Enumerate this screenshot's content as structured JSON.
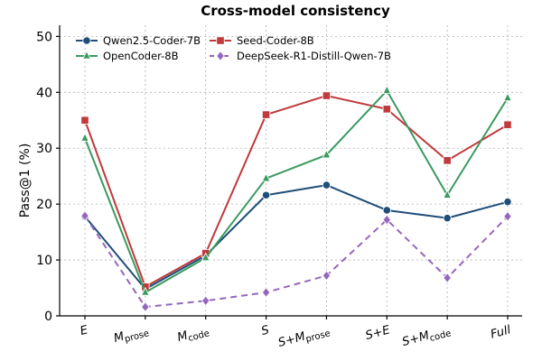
{
  "chart_data": {
    "type": "line",
    "title": "Cross-model consistency",
    "ylabel": "Pass@1 (%)",
    "xlabel": "",
    "ylim": [
      0,
      52
    ],
    "yticks": [
      0,
      10,
      20,
      30,
      40,
      50
    ],
    "grid": "y-dashed",
    "legend_position": "top-left, two columns",
    "categories": [
      {
        "main": "E",
        "sub": ""
      },
      {
        "main": "M",
        "sub": "prose"
      },
      {
        "main": "M",
        "sub": "code"
      },
      {
        "main": "S",
        "sub": ""
      },
      {
        "main": "S+M",
        "sub": "prose"
      },
      {
        "main": "S+E",
        "sub": ""
      },
      {
        "main": "S+M",
        "sub": "code"
      },
      {
        "main": "Full",
        "sub": ""
      }
    ],
    "series": [
      {
        "name": "Qwen2.5-Coder-7B",
        "color": "#1f4e79",
        "marker": "circle",
        "dash": "solid",
        "values": [
          17.8,
          4.8,
          10.8,
          21.6,
          23.4,
          18.9,
          17.5,
          20.4
        ]
      },
      {
        "name": "Seed-Coder-8B",
        "color": "#c0393b",
        "marker": "square",
        "dash": "solid",
        "values": [
          35.0,
          5.2,
          11.2,
          36.0,
          39.4,
          37.0,
          27.8,
          34.2
        ]
      },
      {
        "name": "OpenCoder-8B",
        "color": "#3a9a5e",
        "marker": "triangle",
        "dash": "solid",
        "values": [
          31.8,
          4.2,
          10.4,
          24.6,
          28.8,
          40.3,
          21.6,
          39.0
        ]
      },
      {
        "name": "DeepSeek-R1-Distill-Qwen-7B",
        "color": "#9467bd",
        "marker": "diamond",
        "dash": "dashed",
        "values": [
          17.9,
          1.6,
          2.7,
          4.2,
          7.2,
          17.2,
          6.8,
          17.8
        ]
      }
    ]
  }
}
